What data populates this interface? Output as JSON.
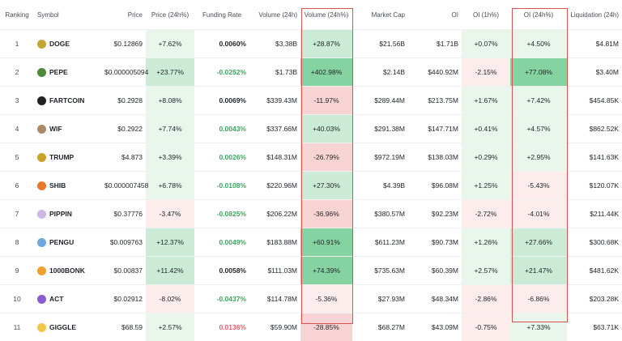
{
  "table": {
    "header": [
      "Ranking",
      "Symbol",
      "Price",
      "Price (24h%)",
      "Funding Rate",
      "Volume (24h)",
      "Volume (24h%)",
      "Market Cap",
      "OI",
      "OI (1h%)",
      "OI (24h%)",
      "Liquidation (24h)"
    ],
    "rows": [
      [
        "1",
        "DOGE",
        "$0.12869",
        "+7.62%",
        "0.0060%",
        "$3.38B",
        "+28.87%",
        "$21.56B",
        "$1.71B",
        "+0.07%",
        "+4.50%",
        "$4.81M"
      ],
      [
        "2",
        "PEPE",
        "$0.000005094",
        "+23.77%",
        "-0.0252%",
        "$1.73B",
        "+402.98%",
        "$2.14B",
        "$440.92M",
        "-2.15%",
        "+77.08%",
        "$3.40M"
      ],
      [
        "3",
        "FARTCOIN",
        "$0.2928",
        "+8.08%",
        "0.0069%",
        "$339.43M",
        "-11.97%",
        "$289.44M",
        "$213.75M",
        "+1.67%",
        "+7.42%",
        "$454.85K"
      ],
      [
        "4",
        "WIF",
        "$0.2922",
        "+7.74%",
        "0.0043%",
        "$337.66M",
        "+40.03%",
        "$291.38M",
        "$147.71M",
        "+0.41%",
        "+4.57%",
        "$862.52K"
      ],
      [
        "5",
        "TRUMP",
        "$4.873",
        "+3.39%",
        "0.0026%",
        "$148.31M",
        "-26.79%",
        "$972.19M",
        "$138.03M",
        "+0.29%",
        "+2.95%",
        "$141.63K"
      ],
      [
        "6",
        "SHIB",
        "$0.000007458",
        "+6.78%",
        "-0.0108%",
        "$220.96M",
        "+27.30%",
        "$4.39B",
        "$96.08M",
        "+1.25%",
        "-5.43%",
        "$120.07K"
      ],
      [
        "7",
        "PIPPIN",
        "$0.37776",
        "-3.47%",
        "-0.0825%",
        "$206.22M",
        "-36.96%",
        "$380.57M",
        "$92.23M",
        "-2.72%",
        "-4.01%",
        "$211.44K"
      ],
      [
        "8",
        "PENGU",
        "$0.009763",
        "+12.37%",
        "0.0049%",
        "$183.88M",
        "+60.91%",
        "$611.23M",
        "$90.73M",
        "+1.26%",
        "+27.66%",
        "$300.68K"
      ],
      [
        "9",
        "1000BONK",
        "$0.00837",
        "+11.42%",
        "0.0058%",
        "$111.03M",
        "+74.39%",
        "$735.63M",
        "$60.39M",
        "+2.57%",
        "+21.47%",
        "$481.62K"
      ],
      [
        "10",
        "ACT",
        "$0.02912",
        "-8.02%",
        "-0.0437%",
        "$114.78M",
        "-5.36%",
        "$27.93M",
        "$48.34M",
        "-2.86%",
        "-6.86%",
        "$203.28K"
      ],
      [
        "11",
        "GIGGLE",
        "$68.59",
        "+2.57%",
        "0.0136%",
        "$59.90M",
        "-28.85%",
        "$68.27M",
        "$43.09M",
        "-0.75%",
        "+7.33%",
        "$63.71K"
      ]
    ],
    "funding_rate_colors": [
      "#1e2329",
      "#3aa55d",
      "#1e2329",
      "#3aa55d",
      "#3aa55d",
      "#3aa55d",
      "#3aa55d",
      "#3aa55d",
      "#1e2329",
      "#3aa55d",
      "#e0606a"
    ]
  }
}
